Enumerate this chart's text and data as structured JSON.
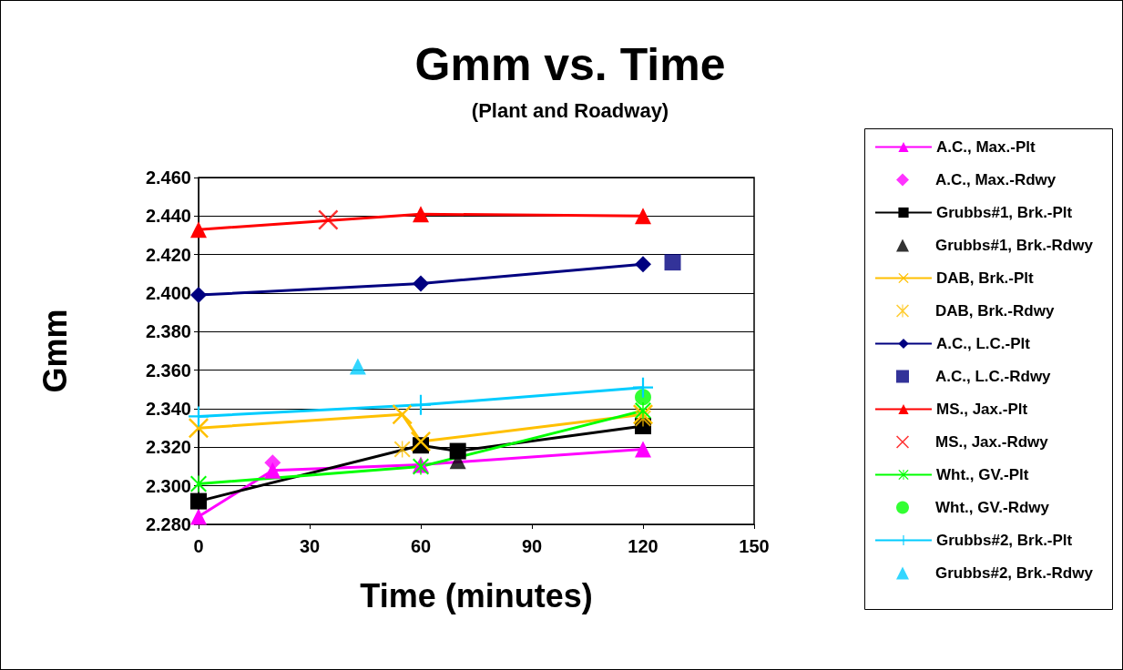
{
  "chart_data": {
    "type": "line",
    "title": "Gmm vs. Time",
    "subtitle": "(Plant and Roadway)",
    "xlabel": "Time (minutes)",
    "ylabel": "Gmm",
    "xlim": [
      0,
      150
    ],
    "xticks": [
      0,
      30,
      60,
      90,
      120,
      150
    ],
    "ylim": [
      2.28,
      2.46
    ],
    "yticks": [
      {
        "value": 2.28,
        "label": "2.280"
      },
      {
        "value": 2.3,
        "label": "2.300"
      },
      {
        "value": 2.32,
        "label": "2.320"
      },
      {
        "value": 2.34,
        "label": "2.340"
      },
      {
        "value": 2.36,
        "label": "2.360"
      },
      {
        "value": 2.38,
        "label": "2.380"
      },
      {
        "value": 2.4,
        "label": "2.400"
      },
      {
        "value": 2.42,
        "label": "2.420"
      },
      {
        "value": 2.44,
        "label": "2.440"
      },
      {
        "value": 2.46,
        "label": "2.460"
      }
    ],
    "grid": "y",
    "legend": "right",
    "series": [
      {
        "name": "A.C., Max.-Plt",
        "marker": "triangle",
        "color": "#ff00ff",
        "x": [
          0,
          20,
          60,
          120
        ],
        "values": [
          2.284,
          2.308,
          2.311,
          2.319
        ]
      },
      {
        "name": "A.C., Max.-Rdwy",
        "type": "scatter",
        "marker": "diamond",
        "color": "#ff00ff",
        "x": [
          20
        ],
        "values": [
          2.312
        ]
      },
      {
        "name": "Grubbs#1, Brk.-Plt",
        "marker": "square",
        "color": "#000000",
        "x": [
          0,
          60,
          70,
          120
        ],
        "values": [
          2.292,
          2.321,
          2.318,
          2.331
        ]
      },
      {
        "name": "Grubbs#1, Brk.-Rdwy",
        "type": "scatter",
        "marker": "triangle",
        "color": "#000000",
        "x": [
          70
        ],
        "values": [
          2.313
        ]
      },
      {
        "name": "DAB, Brk.-Plt",
        "marker": "cross",
        "color": "#ffc000",
        "x": [
          0,
          55,
          60,
          120
        ],
        "values": [
          2.33,
          2.337,
          2.323,
          2.337
        ]
      },
      {
        "name": "DAB, Brk.-Rdwy",
        "type": "scatter",
        "marker": "star",
        "color": "#ffc000",
        "x": [
          55,
          120
        ],
        "values": [
          2.319,
          2.335
        ]
      },
      {
        "name": "A.C., L.C.-Plt",
        "marker": "diamond",
        "color": "#000080",
        "x": [
          0,
          60,
          120
        ],
        "values": [
          2.399,
          2.405,
          2.415
        ]
      },
      {
        "name": "A.C., L.C.-Rdwy",
        "type": "scatter",
        "marker": "square",
        "color": "#000080",
        "x": [
          128
        ],
        "values": [
          2.416
        ]
      },
      {
        "name": "MS., Jax.-Plt",
        "marker": "triangle",
        "color": "#ff0000",
        "x": [
          0,
          60,
          120
        ],
        "values": [
          2.433,
          2.441,
          2.44
        ]
      },
      {
        "name": "MS., Jax.-Rdwy",
        "type": "scatter",
        "marker": "cross",
        "color": "#ff0000",
        "x": [
          35
        ],
        "values": [
          2.438
        ]
      },
      {
        "name": "Wht., GV.-Plt",
        "marker": "star",
        "color": "#00ff00",
        "x": [
          0,
          60,
          120
        ],
        "values": [
          2.301,
          2.31,
          2.339
        ]
      },
      {
        "name": "Wht., GV.-Rdwy",
        "type": "scatter",
        "marker": "circle",
        "color": "#00ff00",
        "x": [
          120
        ],
        "values": [
          2.346
        ]
      },
      {
        "name": "Grubbs#2, Brk.-Plt",
        "marker": "plus",
        "color": "#00ccff",
        "x": [
          0,
          60,
          120
        ],
        "values": [
          2.336,
          2.342,
          2.351
        ]
      },
      {
        "name": "Grubbs#2, Brk.-Rdwy",
        "type": "scatter",
        "marker": "triangle",
        "color": "#00ccff",
        "x": [
          43
        ],
        "values": [
          2.362
        ]
      }
    ]
  }
}
